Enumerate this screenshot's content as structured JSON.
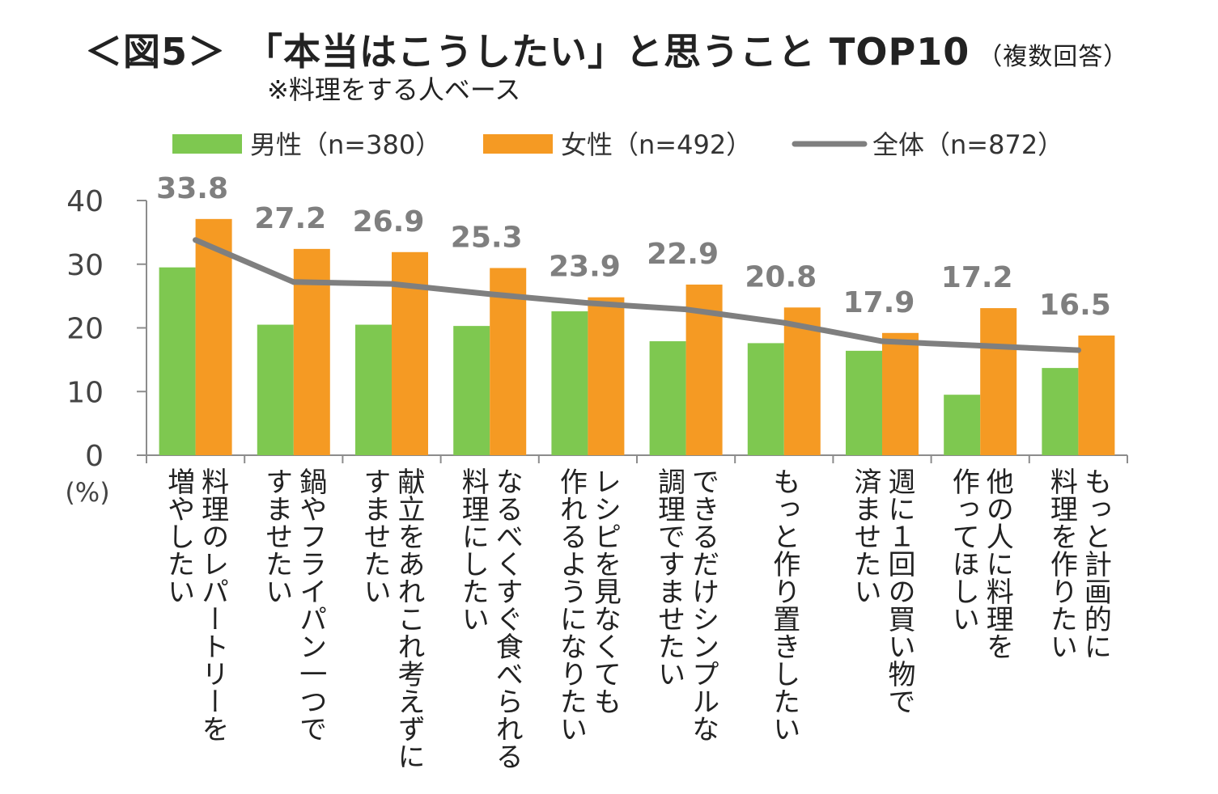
{
  "title": {
    "main": "＜図5＞　「本当はこうしたい」と思うこと TOP10",
    "note": "（複数回答）",
    "subtitle": "※料理をする人ベース"
  },
  "colors": {
    "male": "#7ec850",
    "female": "#f59a23",
    "total": "#7f7f7f",
    "axis": "#8c8c8c"
  },
  "chart_data": {
    "type": "bar",
    "title": "「本当はこうしたい」と思うこと TOP10",
    "ylabel": "(%)",
    "ylim": [
      0,
      40
    ],
    "yticks": [
      0,
      10,
      20,
      30,
      40
    ],
    "grid": false,
    "legend_position": "top",
    "categories": [
      [
        "料理のレパートリーを",
        "増やしたい"
      ],
      [
        "鍋やフライパン一つで",
        "すませたい"
      ],
      [
        "献立をあれこれ考えずに",
        "すませたい"
      ],
      [
        "なるべくすぐ食べられる",
        "料理にしたい"
      ],
      [
        "レシピを見なくても",
        "作れるようになりたい"
      ],
      [
        "できるだけシンプルな",
        "調理ですませたい"
      ],
      [
        "もっと作り置きしたい"
      ],
      [
        "週に１回の買い物で",
        "済ませたい"
      ],
      [
        "他の人に料理を",
        "作ってほしい"
      ],
      [
        "もっと計画的に",
        "料理を作りたい"
      ]
    ],
    "series": [
      {
        "name": "男性（n=380）",
        "type": "bar",
        "values": [
          29.5,
          20.5,
          20.5,
          20.3,
          22.6,
          17.9,
          17.6,
          16.4,
          9.5,
          13.7
        ]
      },
      {
        "name": "女性（n=492）",
        "type": "bar",
        "values": [
          37.1,
          32.4,
          31.9,
          29.4,
          24.8,
          26.8,
          23.2,
          19.2,
          23.1,
          18.8
        ]
      },
      {
        "name": "全体（n=872）",
        "type": "line",
        "values": [
          33.8,
          27.2,
          26.9,
          25.3,
          23.9,
          22.9,
          20.8,
          17.9,
          17.2,
          16.5
        ],
        "labels": [
          "33.8",
          "27.2",
          "26.9",
          "25.3",
          "23.9",
          "22.9",
          "20.8",
          "17.9",
          "17.2",
          "16.5"
        ]
      }
    ]
  }
}
